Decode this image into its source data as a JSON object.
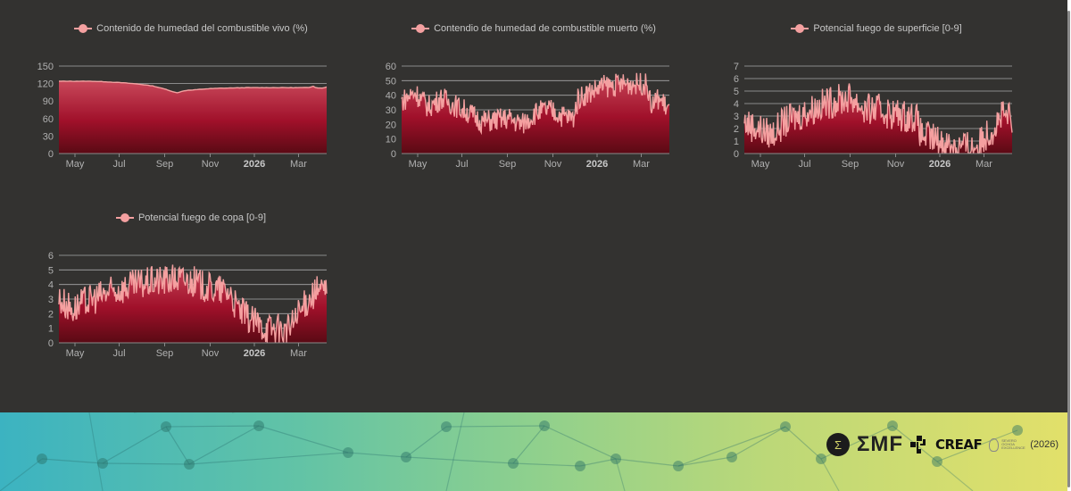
{
  "colors": {
    "background": "#333230",
    "line": "#f4a0a0",
    "fill_top": "#c8485a",
    "fill_mid": "#a0102a",
    "fill_bottom": "#5a0a14",
    "grid": "#a8a8a8"
  },
  "x_axis": {
    "ticks": [
      "May",
      "Jul",
      "Sep",
      "Nov",
      "2026",
      "Mar"
    ],
    "bold_ticks": [
      "2026"
    ]
  },
  "chart_data": [
    {
      "id": "live-fuel-moisture",
      "type": "area",
      "title": "",
      "legend": "Contenido de humedad del combustible vivo (%)",
      "xlabel": "",
      "ylabel": "",
      "ylim": [
        0,
        150
      ],
      "yticks": [
        0,
        30,
        60,
        90,
        120,
        150
      ],
      "xticks": [
        "May",
        "Jul",
        "Sep",
        "Nov",
        "2026",
        "Mar"
      ],
      "x_range": [
        "2025-04-10",
        "2026-04-05"
      ],
      "grid": true,
      "legend_position": "top",
      "series": [
        {
          "name": "Contenido de humedad del combustible vivo (%)",
          "anchors": [
            [
              0,
              124
            ],
            [
              0.12,
              124
            ],
            [
              0.18,
              123
            ],
            [
              0.25,
              121
            ],
            [
              0.3,
              119
            ],
            [
              0.35,
              116
            ],
            [
              0.4,
              110
            ],
            [
              0.44,
              104
            ],
            [
              0.47,
              108
            ],
            [
              0.5,
              109
            ],
            [
              0.55,
              111
            ],
            [
              0.6,
              112
            ],
            [
              0.7,
              113
            ],
            [
              0.85,
              113
            ],
            [
              0.94,
              113
            ],
            [
              0.945,
              117
            ],
            [
              0.96,
              113
            ],
            [
              0.98,
              112
            ],
            [
              1,
              114
            ]
          ],
          "noise": 0.3
        }
      ]
    },
    {
      "id": "dead-fuel-moisture",
      "type": "area",
      "title": "",
      "legend": "Contendio de humedad de combustible muerto (%)",
      "xlabel": "",
      "ylabel": "",
      "ylim": [
        0,
        60
      ],
      "yticks": [
        0,
        10,
        20,
        30,
        40,
        50,
        60
      ],
      "xticks": [
        "May",
        "Jul",
        "Sep",
        "Nov",
        "2026",
        "Mar"
      ],
      "x_range": [
        "2025-04-10",
        "2026-04-05"
      ],
      "grid": true,
      "legend_position": "top",
      "series": [
        {
          "name": "Contendio de humedad de combustible muerto (%)",
          "anchors": [
            [
              0,
              36
            ],
            [
              0.05,
              42
            ],
            [
              0.1,
              32
            ],
            [
              0.15,
              38
            ],
            [
              0.25,
              28
            ],
            [
              0.3,
              22
            ],
            [
              0.4,
              24
            ],
            [
              0.45,
              20
            ],
            [
              0.5,
              28
            ],
            [
              0.55,
              30
            ],
            [
              0.6,
              26
            ],
            [
              0.64,
              24
            ],
            [
              0.66,
              38
            ],
            [
              0.7,
              42
            ],
            [
              0.75,
              46
            ],
            [
              0.85,
              48
            ],
            [
              0.9,
              48
            ],
            [
              0.92,
              46
            ],
            [
              0.93,
              32
            ],
            [
              0.96,
              38
            ],
            [
              1,
              30
            ]
          ],
          "noise": 8
        }
      ]
    },
    {
      "id": "surface-fire-potential",
      "type": "area",
      "title": "",
      "legend": "Potencial fuego de superficie [0-9]",
      "xlabel": "",
      "ylabel": "",
      "ylim": [
        0,
        7
      ],
      "yticks": [
        0,
        1,
        2,
        3,
        4,
        5,
        6,
        7
      ],
      "xticks": [
        "May",
        "Jul",
        "Sep",
        "Nov",
        "2026",
        "Mar"
      ],
      "x_range": [
        "2025-04-10",
        "2026-04-05"
      ],
      "grid": true,
      "legend_position": "top",
      "series": [
        {
          "name": "Potencial fuego de superficie [0-9]",
          "anchors": [
            [
              0,
              2.5
            ],
            [
              0.05,
              2
            ],
            [
              0.1,
              1.5
            ],
            [
              0.15,
              2.5
            ],
            [
              0.25,
              3.5
            ],
            [
              0.3,
              4
            ],
            [
              0.4,
              4.5
            ],
            [
              0.45,
              3.5
            ],
            [
              0.5,
              3.5
            ],
            [
              0.55,
              3.2
            ],
            [
              0.6,
              3
            ],
            [
              0.64,
              3
            ],
            [
              0.66,
              1.5
            ],
            [
              0.7,
              1.2
            ],
            [
              0.75,
              0.8
            ],
            [
              0.85,
              0.5
            ],
            [
              0.88,
              0.8
            ],
            [
              0.9,
              1.5
            ],
            [
              0.93,
              2
            ],
            [
              0.96,
              3
            ],
            [
              1,
              2.8
            ]
          ],
          "noise": 1.3
        }
      ]
    },
    {
      "id": "crown-fire-potential",
      "type": "area",
      "title": "",
      "legend": "Potencial fuego de copa [0-9]",
      "xlabel": "",
      "ylabel": "",
      "ylim": [
        0,
        6
      ],
      "yticks": [
        0,
        1,
        2,
        3,
        4,
        5,
        6
      ],
      "xticks": [
        "May",
        "Jul",
        "Sep",
        "Nov",
        "2026",
        "Mar"
      ],
      "x_range": [
        "2025-04-10",
        "2026-04-05"
      ],
      "grid": true,
      "legend_position": "top",
      "series": [
        {
          "name": "Potencial fuego de copa [0-9]",
          "anchors": [
            [
              0,
              3
            ],
            [
              0.05,
              2.3
            ],
            [
              0.1,
              2.8
            ],
            [
              0.15,
              3.2
            ],
            [
              0.25,
              3.8
            ],
            [
              0.35,
              4.2
            ],
            [
              0.45,
              4.4
            ],
            [
              0.5,
              4.2
            ],
            [
              0.55,
              3.8
            ],
            [
              0.6,
              3.6
            ],
            [
              0.64,
              3.5
            ],
            [
              0.66,
              2.5
            ],
            [
              0.7,
              1.8
            ],
            [
              0.75,
              1.2
            ],
            [
              0.85,
              0.8
            ],
            [
              0.88,
              1.5
            ],
            [
              0.9,
              2
            ],
            [
              0.93,
              3
            ],
            [
              0.96,
              3.5
            ],
            [
              1,
              3.6
            ]
          ],
          "noise": 1.1
        }
      ]
    }
  ],
  "footer": {
    "logo_emf": "ΣMF",
    "logo_creaf": "CREAF",
    "logo_severo": "SEVERO OCHOA EXCELLENCE",
    "year": "(2026)"
  }
}
